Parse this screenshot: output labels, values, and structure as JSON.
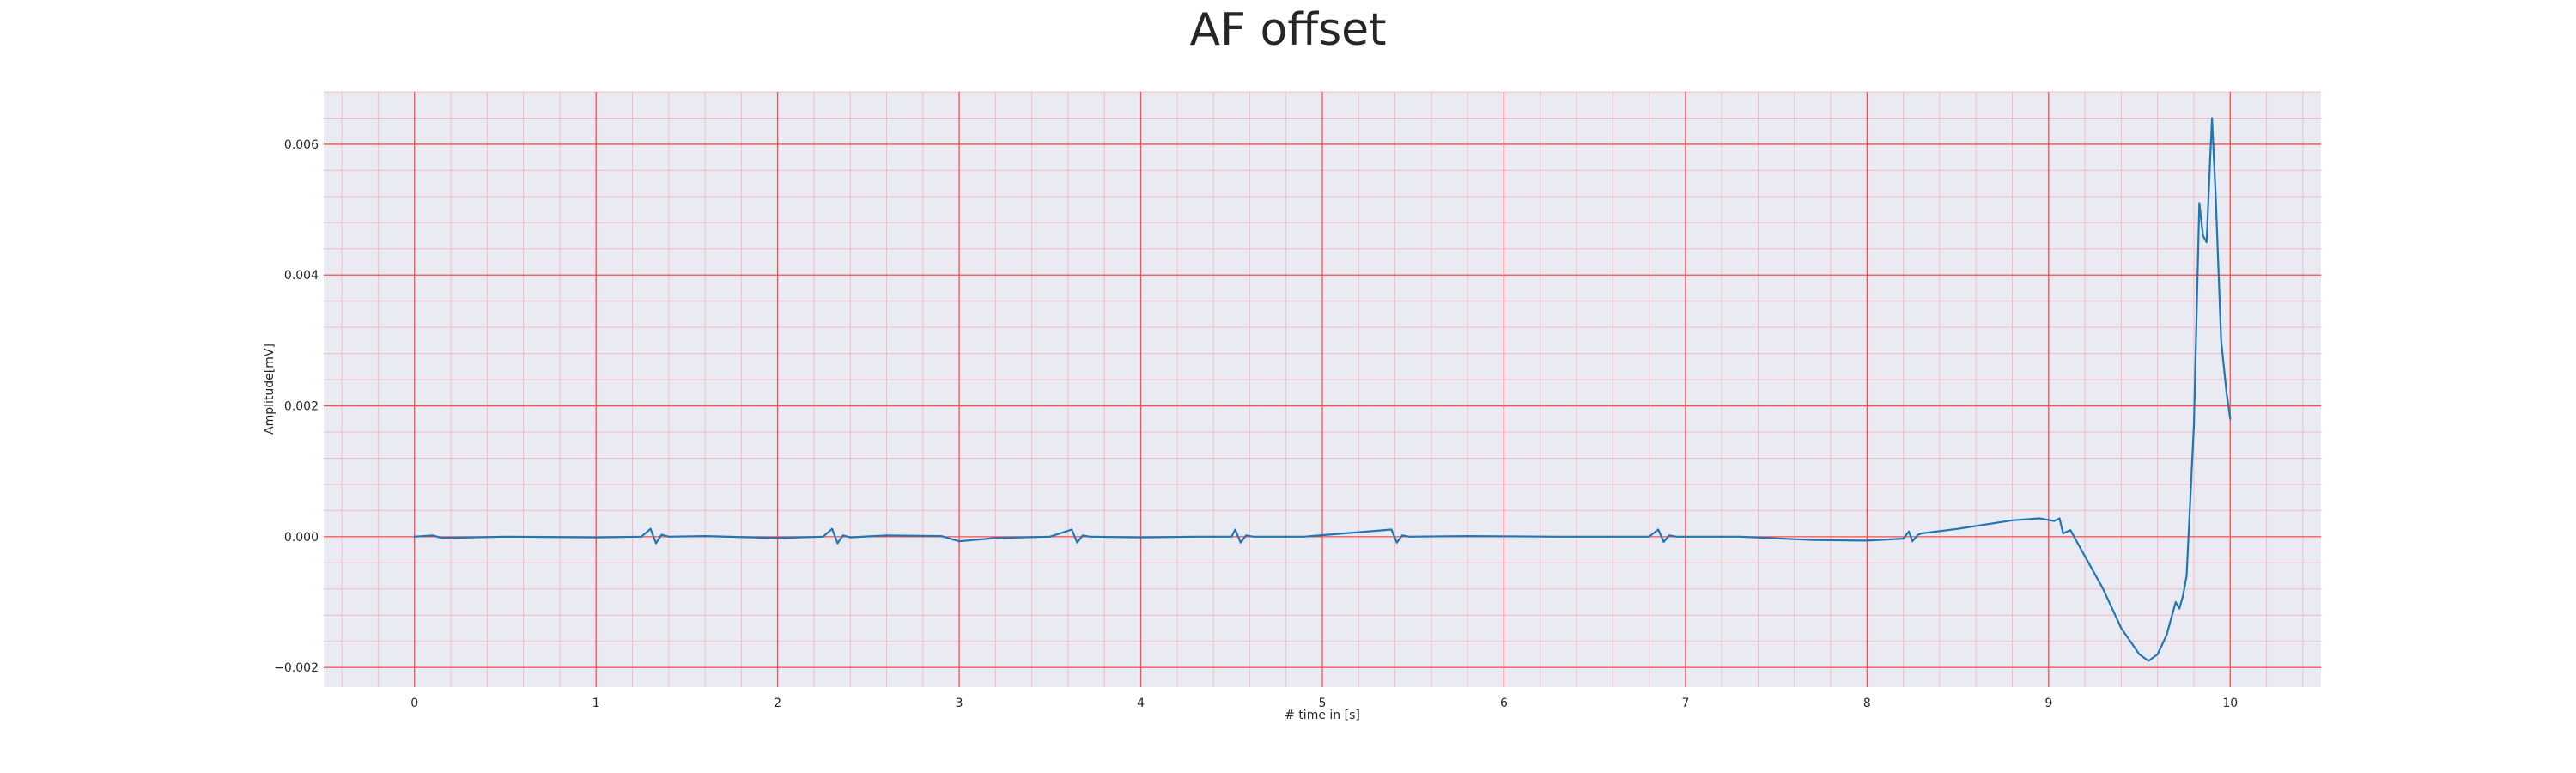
{
  "colors": {
    "plot_background": "#eaeaf2",
    "major_grid": "#ff4d4d",
    "minor_grid": "#f7b3bf",
    "series_line": "#1f77b4",
    "text": "#262626"
  },
  "chart_data": {
    "type": "line",
    "title": "AF offset",
    "xlabel": "# time in [s]",
    "ylabel": "Amplitude[mV]",
    "xlim": [
      -0.5,
      10.5
    ],
    "ylim": [
      -0.0023,
      0.0068
    ],
    "x_ticks": [
      0,
      1,
      2,
      3,
      4,
      5,
      6,
      7,
      8,
      9,
      10
    ],
    "x_tick_labels": [
      "0",
      "1",
      "2",
      "3",
      "4",
      "5",
      "6",
      "7",
      "8",
      "9",
      "10"
    ],
    "y_ticks": [
      -0.002,
      0.0,
      0.002,
      0.004,
      0.006
    ],
    "y_tick_labels": [
      "−0.002",
      "0.000",
      "0.002",
      "0.004",
      "0.006"
    ],
    "grid": true,
    "minor_grid": true,
    "series": [
      {
        "x": [
          0.0,
          0.1,
          0.15,
          0.5,
          1.0,
          1.25,
          1.3,
          1.33,
          1.36,
          1.4,
          1.6,
          2.0,
          2.25,
          2.3,
          2.33,
          2.36,
          2.4,
          2.6,
          2.9,
          3.0,
          3.2,
          3.5,
          3.62,
          3.65,
          3.68,
          3.72,
          4.0,
          4.3,
          4.5,
          4.52,
          4.55,
          4.58,
          4.62,
          4.9,
          5.38,
          5.41,
          5.44,
          5.48,
          5.8,
          6.3,
          6.8,
          6.85,
          6.88,
          6.91,
          6.95,
          7.3,
          7.7,
          8.0,
          8.2,
          8.23,
          8.25,
          8.28,
          8.3,
          8.5,
          8.8,
          8.95,
          9.03,
          9.06,
          9.08,
          9.12,
          9.2,
          9.3,
          9.4,
          9.5,
          9.55,
          9.6,
          9.65,
          9.7,
          9.72,
          9.74,
          9.76,
          9.8,
          9.83,
          9.85,
          9.87,
          9.89,
          9.9,
          9.92,
          9.95,
          9.98,
          10.0
        ],
        "y": [
          0.0,
          2e-05,
          -2e-05,
          0.0,
          -1e-05,
          0.0,
          0.00012,
          -0.0001,
          3e-05,
          0.0,
          1e-05,
          -2e-05,
          0.0,
          0.00012,
          -0.0001,
          2e-05,
          -1e-05,
          2e-05,
          1e-05,
          -7e-05,
          -2e-05,
          0.0,
          0.00011,
          -9e-05,
          2e-05,
          0.0,
          -1e-05,
          0.0,
          0.0,
          0.00011,
          -9e-05,
          2e-05,
          0.0,
          0.0,
          0.00011,
          -9e-05,
          2e-05,
          0.0,
          1e-05,
          0.0,
          0.0,
          0.00011,
          -8e-05,
          2e-05,
          0.0,
          0.0,
          -5e-05,
          -6e-05,
          -3e-05,
          8e-05,
          -7e-05,
          3e-05,
          5e-05,
          0.00012,
          0.00025,
          0.00028,
          0.00024,
          0.00028,
          5e-05,
          0.0001,
          -0.0003,
          -0.0008,
          -0.0014,
          -0.0018,
          -0.0019,
          -0.0018,
          -0.0015,
          -0.001,
          -0.0011,
          -0.0009,
          -0.0006,
          0.0017,
          0.0051,
          0.0046,
          0.0045,
          0.0058,
          0.0064,
          0.0052,
          0.003,
          0.0022,
          0.0018
        ]
      }
    ]
  }
}
